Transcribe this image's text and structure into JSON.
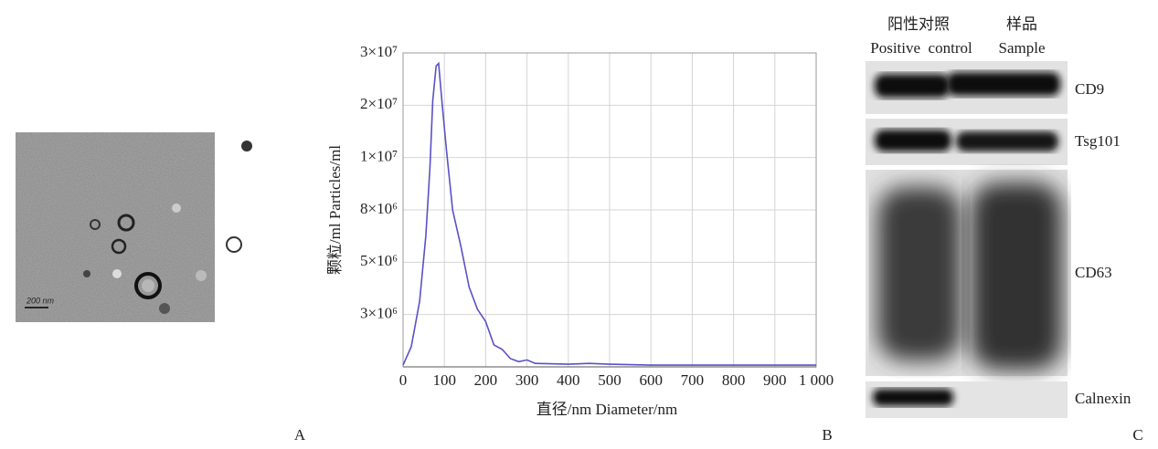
{
  "panel_labels": [
    "A",
    "B",
    "C"
  ],
  "panel_a": {
    "scale_bar": "200 nm"
  },
  "chart_data": {
    "type": "line",
    "y_label": "颗粒/ml  Particles/ml",
    "x_label": "直径/nm  Diameter/nm",
    "x": [
      0,
      20,
      40,
      55,
      65,
      72,
      80,
      86,
      95,
      105,
      120,
      140,
      160,
      180,
      200,
      220,
      240,
      260,
      280,
      300,
      320,
      400,
      450,
      500,
      600,
      1000
    ],
    "values": [
      100000,
      1160000,
      3500000,
      6500000,
      9600000,
      20900000,
      27500000,
      28000000,
      20000000,
      11400000,
      8000000,
      5900000,
      4050000,
      3200000,
      2600000,
      1260000,
      1000000,
      470000,
      300000,
      400000,
      200000,
      150000,
      200000,
      150000,
      100000,
      100000
    ],
    "color": "#5a50c8",
    "xlim": [
      0,
      1000
    ],
    "xticks": [
      0,
      100,
      200,
      300,
      400,
      500,
      600,
      700,
      800,
      900,
      {
        "value": 1000,
        "label": "1 000"
      }
    ],
    "ylim": [
      0,
      30000000
    ],
    "yticks": [
      {
        "value": 3000000,
        "label": "3×10⁶"
      },
      {
        "value": 5000000,
        "label": "5×10⁶"
      },
      {
        "value": 8000000,
        "label": "8×10⁶"
      },
      {
        "value": 10000000,
        "label": "1×10⁷"
      },
      {
        "value": 20000000,
        "label": "2×10⁷"
      },
      {
        "value": 30000000,
        "label": "3×10⁷"
      }
    ],
    "grid": true
  },
  "panel_c": {
    "columns_cn": [
      "阳性对照",
      "样品"
    ],
    "columns_en": [
      "Positive  control",
      "Sample"
    ],
    "bands": [
      "CD9",
      "Tsg101",
      "CD63",
      "Calnexin"
    ]
  }
}
